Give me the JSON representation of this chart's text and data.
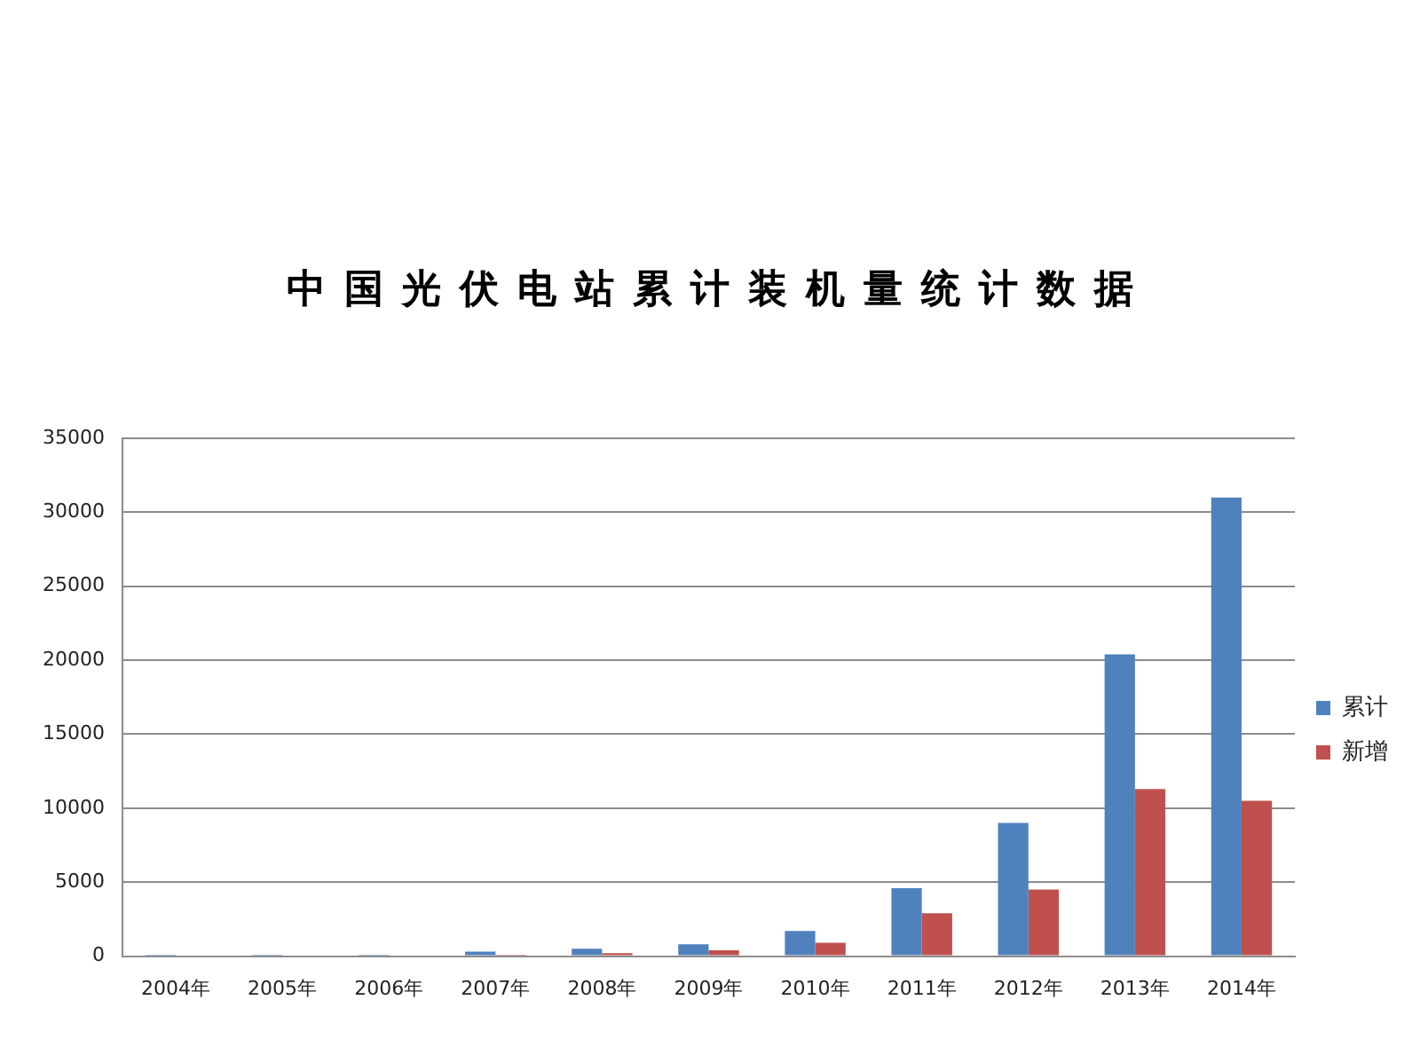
{
  "chart_data": {
    "type": "bar",
    "title": "中国光伏电站累计装机量统计数据",
    "categories": [
      "2004年",
      "2005年",
      "2006年",
      "2007年",
      "2008年",
      "2009年",
      "2010年",
      "2011年",
      "2012年",
      "2013年",
      "2014年"
    ],
    "series": [
      {
        "name": "累计",
        "color": "#4f81bd",
        "values": [
          100,
          100,
          100,
          300,
          500,
          800,
          1700,
          4600,
          9000,
          20400,
          31000
        ]
      },
      {
        "name": "新增",
        "color": "#c0504d",
        "values": [
          0,
          0,
          0,
          100,
          200,
          400,
          900,
          2900,
          4500,
          11300,
          10500
        ]
      }
    ],
    "ylim": [
      0,
      35000
    ],
    "yticks": [
      0,
      5000,
      10000,
      15000,
      20000,
      25000,
      30000,
      35000
    ],
    "grid": "y",
    "legend": "right"
  }
}
